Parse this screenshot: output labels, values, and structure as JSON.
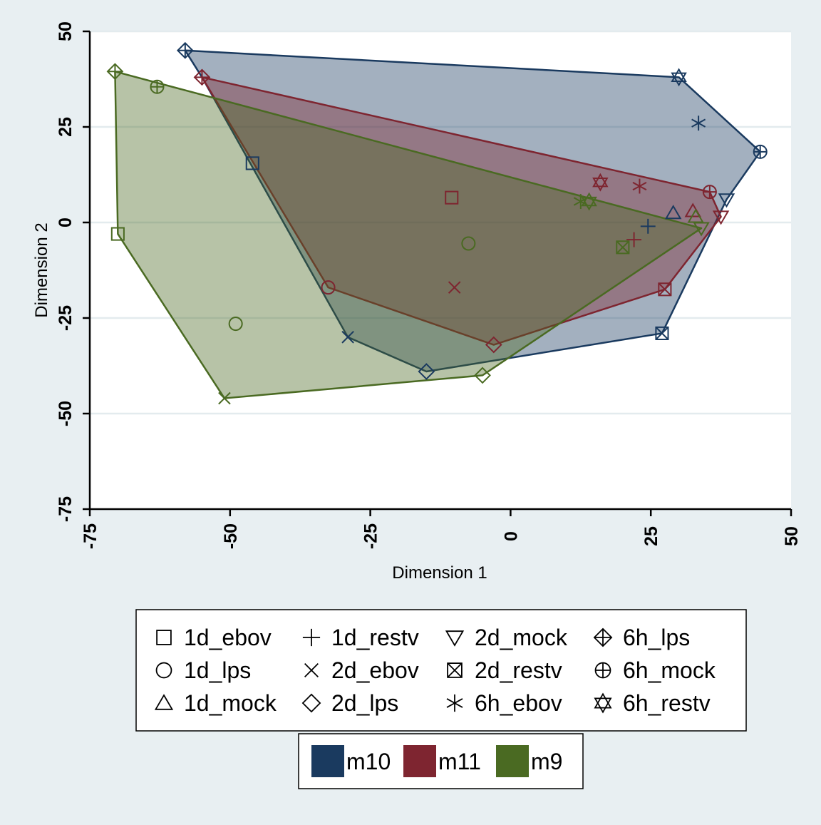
{
  "chart_data": {
    "type": "scatter",
    "title": "",
    "xlabel": "Dimension 1",
    "ylabel": "Dimension 2",
    "xlim": [
      -75,
      50
    ],
    "ylim": [
      -75,
      50
    ],
    "xticks": [
      "-75",
      "-50",
      "-25",
      "0",
      "25",
      "50"
    ],
    "yticks": [
      "-75",
      "-50",
      "-25",
      "0",
      "25",
      "50"
    ],
    "grid": "horizontal",
    "symbol_legend": {
      "columns": 4,
      "placement": "bottom",
      "entries": [
        {
          "label": "1d_ebov",
          "symbol": "square"
        },
        {
          "label": "1d_lps",
          "symbol": "circle"
        },
        {
          "label": "1d_mock",
          "symbol": "triangle"
        },
        {
          "label": "1d_restv",
          "symbol": "plus"
        },
        {
          "label": "2d_ebov",
          "symbol": "x"
        },
        {
          "label": "2d_lps",
          "symbol": "diamond"
        },
        {
          "label": "2d_mock",
          "symbol": "triangle-down"
        },
        {
          "label": "2d_restv",
          "symbol": "square-x"
        },
        {
          "label": "6h_ebov",
          "symbol": "asterisk"
        },
        {
          "label": "6h_lps",
          "symbol": "diamond-plus"
        },
        {
          "label": "6h_mock",
          "symbol": "circle-plus"
        },
        {
          "label": "6h_restv",
          "symbol": "star-of-david"
        }
      ]
    },
    "color_legend": {
      "placement": "bottom",
      "entries": [
        {
          "label": "m10",
          "color": "#1a3a5f"
        },
        {
          "label": "m11",
          "color": "#7e2530"
        },
        {
          "label": "m9",
          "color": "#4a6a22"
        }
      ]
    },
    "series": [
      {
        "name": "m10",
        "color": "#1a3a5f",
        "hull": [
          [
            -58,
            45
          ],
          [
            30,
            38
          ],
          [
            44.5,
            18.5
          ],
          [
            38.5,
            6
          ],
          [
            27,
            -29
          ],
          [
            -15,
            -39
          ],
          [
            -29,
            -30
          ],
          [
            -55,
            38
          ]
        ],
        "points": [
          {
            "label": "6h_lps",
            "x": -58,
            "y": 45
          },
          {
            "label": "6h_restv",
            "x": 30,
            "y": 38
          },
          {
            "label": "6h_ebov",
            "x": 33.5,
            "y": 26
          },
          {
            "label": "6h_mock",
            "x": 44.5,
            "y": 18.5
          },
          {
            "label": "2d_mock",
            "x": 38.5,
            "y": 6
          },
          {
            "label": "1d_mock",
            "x": 29,
            "y": 2.5
          },
          {
            "label": "1d_restv",
            "x": 24.5,
            "y": -1
          },
          {
            "label": "2d_restv",
            "x": 27,
            "y": -29
          },
          {
            "label": "2d_lps",
            "x": -15,
            "y": -39
          },
          {
            "label": "2d_ebov",
            "x": -29,
            "y": -30
          },
          {
            "label": "1d_ebov",
            "x": -46,
            "y": 15.5
          }
        ]
      },
      {
        "name": "m11",
        "color": "#7e2530",
        "hull": [
          [
            -55,
            38
          ],
          [
            35.5,
            8
          ],
          [
            37.5,
            1.5
          ],
          [
            27.5,
            -17.5
          ],
          [
            -3,
            -32
          ],
          [
            -32.5,
            -17
          ]
        ],
        "points": [
          {
            "label": "6h_lps",
            "x": -55,
            "y": 38
          },
          {
            "label": "6h_restv",
            "x": 16,
            "y": 10.5
          },
          {
            "label": "6h_ebov",
            "x": 23,
            "y": 9.5
          },
          {
            "label": "6h_mock",
            "x": 35.5,
            "y": 8
          },
          {
            "label": "2d_mock",
            "x": 37.5,
            "y": 1.5
          },
          {
            "label": "1d_mock",
            "x": 32.5,
            "y": 3
          },
          {
            "label": "1d_restv",
            "x": 22,
            "y": -4.5
          },
          {
            "label": "2d_restv",
            "x": 27.5,
            "y": -17.5
          },
          {
            "label": "2d_lps",
            "x": -3,
            "y": -32
          },
          {
            "label": "1d_lps",
            "x": -32.5,
            "y": -17
          },
          {
            "label": "1d_ebov",
            "x": -10.5,
            "y": 6.5
          },
          {
            "label": "2d_ebov",
            "x": -10,
            "y": -17
          }
        ]
      },
      {
        "name": "m9",
        "color": "#4a6a22",
        "hull": [
          [
            -70.5,
            39.5
          ],
          [
            34,
            -1.5
          ],
          [
            -5,
            -40
          ],
          [
            -51,
            -46
          ],
          [
            -70,
            -3
          ]
        ],
        "points": [
          {
            "label": "6h_lps",
            "x": -70.5,
            "y": 39.5
          },
          {
            "label": "6h_mock",
            "x": -63,
            "y": 35.5
          },
          {
            "label": "1d_ebov",
            "x": -70,
            "y": -3
          },
          {
            "label": "1d_lps",
            "x": -49,
            "y": -26.5
          },
          {
            "label": "2d_ebov",
            "x": -51,
            "y": -46
          },
          {
            "label": "2d_lps",
            "x": -5,
            "y": -40
          },
          {
            "label": "6h_ebov",
            "x": 12.5,
            "y": 5.5
          },
          {
            "label": "6h_restv",
            "x": 14,
            "y": 5.5
          },
          {
            "label": "1d_mock",
            "x": 33,
            "y": 1.5
          },
          {
            "label": "2d_mock",
            "x": 34,
            "y": -1.5
          },
          {
            "label": "2d_restv",
            "x": 20,
            "y": -6.5
          },
          {
            "label": "1d_lps",
            "x": -7.5,
            "y": -5.5
          }
        ]
      }
    ]
  }
}
